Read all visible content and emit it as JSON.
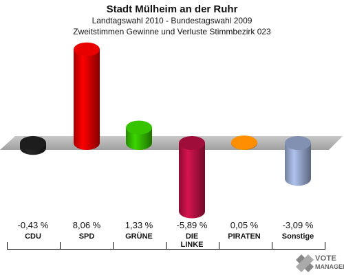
{
  "header": {
    "title": "Stadt Mülheim an der Ruhr",
    "subtitle1": "Landtagswahl 2010 - Bundestagswahl 2009",
    "subtitle2": "Zweitstimmen Gewinne und Verluste Stimmbezirk 023"
  },
  "chart_data": {
    "type": "bar",
    "categories": [
      "CDU",
      "SPD",
      "GRÜNE",
      "DIE LINKE",
      "PIRATEN",
      "Sonstige"
    ],
    "category_labels": [
      "CDU",
      "SPD",
      "GRÜNE",
      "DIE\nLINKE",
      "PIRATEN",
      "Sonstige"
    ],
    "values": [
      -0.43,
      8.06,
      1.33,
      -5.89,
      0.05,
      -3.09
    ],
    "value_labels": [
      "-0,43 %",
      "8,06 %",
      "1,33 %",
      "-5,89 %",
      "0,05 %",
      "-3,09 %"
    ],
    "colors": [
      "#222222",
      "#dd0000",
      "#33bb00",
      "#bb1144",
      "#ff8800",
      "#99aad0"
    ],
    "unit": "%"
  },
  "logo": {
    "line1": "VOTE",
    "line2": "MANAGER"
  }
}
